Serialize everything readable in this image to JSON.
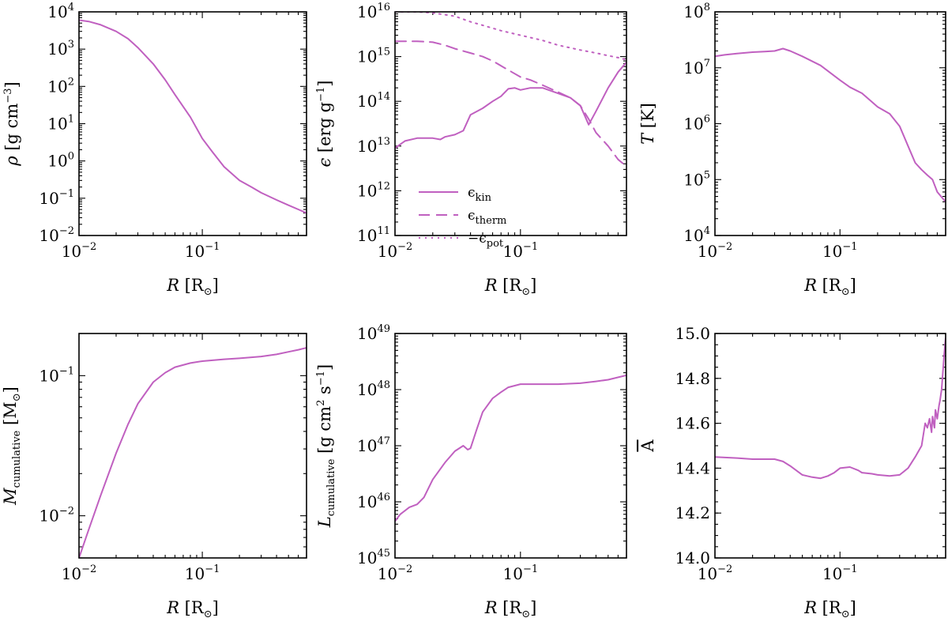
{
  "figure": {
    "line_color": "#c060c0"
  },
  "chart_data": [
    {
      "type": "line",
      "id": "rho",
      "xscale": "log",
      "yscale": "log",
      "xlim": [
        0.01,
        0.7
      ],
      "ylim": [
        0.01,
        10000
      ],
      "xlabel": {
        "main": "R",
        "unit": "[R",
        "unit_sub": "⊙",
        "unit_end": "]"
      },
      "ylabel": {
        "main": "ρ",
        "unit": "[g cm",
        "unit_sup": "−3",
        "unit_end": "]"
      },
      "xticks": [
        {
          "value": 0.01,
          "base": "10",
          "exp": "−2"
        },
        {
          "value": 0.1,
          "base": "10",
          "exp": "−1"
        }
      ],
      "yticks": [
        {
          "value": 0.01,
          "base": "10",
          "exp": "−2"
        },
        {
          "value": 0.1,
          "base": "10",
          "exp": "−1"
        },
        {
          "value": 1,
          "base": "10",
          "exp": "0"
        },
        {
          "value": 10,
          "base": "10",
          "exp": "1"
        },
        {
          "value": 100,
          "base": "10",
          "exp": "2"
        },
        {
          "value": 1000,
          "base": "10",
          "exp": "3"
        },
        {
          "value": 10000,
          "base": "10",
          "exp": "4"
        }
      ],
      "series": [
        {
          "name": "rho",
          "style": "solid",
          "x": [
            0.01,
            0.012,
            0.015,
            0.02,
            0.025,
            0.03,
            0.04,
            0.05,
            0.06,
            0.08,
            0.1,
            0.12,
            0.15,
            0.2,
            0.25,
            0.3,
            0.4,
            0.5,
            0.6,
            0.7
          ],
          "y": [
            6000,
            5500,
            4500,
            3000,
            1900,
            1100,
            400,
            150,
            60,
            15,
            4,
            1.8,
            0.7,
            0.3,
            0.2,
            0.14,
            0.09,
            0.065,
            0.05,
            0.04
          ]
        }
      ]
    },
    {
      "type": "line",
      "id": "epsilon",
      "xscale": "log",
      "yscale": "log",
      "xlim": [
        0.01,
        0.7
      ],
      "ylim": [
        100000000000.0,
        1e+16
      ],
      "xlabel": {
        "main": "R",
        "unit": "[R",
        "unit_sub": "⊙",
        "unit_end": "]"
      },
      "ylabel": {
        "main": "ϵ",
        "unit": "[erg g",
        "unit_sup": "−1",
        "unit_end": "]"
      },
      "xticks": [
        {
          "value": 0.01,
          "base": "10",
          "exp": "−2"
        },
        {
          "value": 0.1,
          "base": "10",
          "exp": "−1"
        }
      ],
      "yticks": [
        {
          "value": 100000000000.0,
          "base": "10",
          "exp": "11"
        },
        {
          "value": 1000000000000.0,
          "base": "10",
          "exp": "12"
        },
        {
          "value": 10000000000000.0,
          "base": "10",
          "exp": "13"
        },
        {
          "value": 100000000000000.0,
          "base": "10",
          "exp": "14"
        },
        {
          "value": 1000000000000000.0,
          "base": "10",
          "exp": "15"
        },
        {
          "value": 1e+16,
          "base": "10",
          "exp": "16"
        }
      ],
      "legend": {
        "position": "lower-left"
      },
      "series": [
        {
          "name": "ϵ",
          "sub": "kin",
          "style": "solid",
          "x": [
            0.01,
            0.012,
            0.015,
            0.02,
            0.023,
            0.025,
            0.03,
            0.035,
            0.04,
            0.05,
            0.06,
            0.07,
            0.08,
            0.09,
            0.1,
            0.12,
            0.15,
            0.2,
            0.25,
            0.3,
            0.35,
            0.4,
            0.5,
            0.6,
            0.7
          ],
          "y": [
            9000000000000.0,
            13000000000000.0,
            15000000000000.0,
            15000000000000.0,
            14000000000000.0,
            16000000000000.0,
            18000000000000.0,
            22000000000000.0,
            50000000000000.0,
            70000000000000.0,
            100000000000000.0,
            130000000000000.0,
            190000000000000.0,
            200000000000000.0,
            180000000000000.0,
            200000000000000.0,
            200000000000000.0,
            150000000000000.0,
            120000000000000.0,
            80000000000000.0,
            30000000000000.0,
            60000000000000.0,
            200000000000000.0,
            450000000000000.0,
            750000000000000.0
          ]
        },
        {
          "name": "ϵ",
          "sub": "therm",
          "style": "dashed",
          "x": [
            0.01,
            0.015,
            0.02,
            0.025,
            0.03,
            0.04,
            0.05,
            0.06,
            0.08,
            0.1,
            0.12,
            0.15,
            0.2,
            0.25,
            0.3,
            0.35,
            0.4,
            0.5,
            0.6,
            0.7
          ],
          "y": [
            2200000000000000.0,
            2200000000000000.0,
            2100000000000000.0,
            1800000000000000.0,
            1500000000000000.0,
            1200000000000000.0,
            1000000000000000.0,
            800000000000000.0,
            500000000000000.0,
            350000000000000.0,
            300000000000000.0,
            230000000000000.0,
            160000000000000.0,
            120000000000000.0,
            80000000000000.0,
            40000000000000.0,
            20000000000000.0,
            10000000000000.0,
            5000000000000.0,
            3500000000000.0
          ]
        },
        {
          "name": "−ϵ",
          "sub": "pot",
          "style": "dotted",
          "x": [
            0.01,
            0.015,
            0.02,
            0.03,
            0.04,
            0.05,
            0.07,
            0.1,
            0.15,
            0.2,
            0.3,
            0.4,
            0.5,
            0.6,
            0.7
          ],
          "y": [
            1e+16,
            1e+16,
            9500000000000000.0,
            8000000000000000.0,
            6000000000000000.0,
            5000000000000000.0,
            3800000000000000.0,
            3000000000000000.0,
            2300000000000000.0,
            1800000000000000.0,
            1400000000000000.0,
            1200000000000000.0,
            1050000000000000.0,
            950000000000000.0,
            850000000000000.0
          ]
        }
      ]
    },
    {
      "type": "line",
      "id": "temperature",
      "xscale": "log",
      "yscale": "log",
      "xlim": [
        0.01,
        0.7
      ],
      "ylim": [
        10000,
        100000000.0
      ],
      "xlabel": {
        "main": "R",
        "unit": "[R",
        "unit_sub": "⊙",
        "unit_end": "]"
      },
      "ylabel": {
        "main": "T",
        "unit": "[K]"
      },
      "xticks": [
        {
          "value": 0.01,
          "base": "10",
          "exp": "−2"
        },
        {
          "value": 0.1,
          "base": "10",
          "exp": "−1"
        }
      ],
      "yticks": [
        {
          "value": 10000,
          "base": "10",
          "exp": "4"
        },
        {
          "value": 100000,
          "base": "10",
          "exp": "5"
        },
        {
          "value": 1000000.0,
          "base": "10",
          "exp": "6"
        },
        {
          "value": 10000000.0,
          "base": "10",
          "exp": "7"
        },
        {
          "value": 100000000.0,
          "base": "10",
          "exp": "8"
        }
      ],
      "series": [
        {
          "name": "T",
          "style": "solid",
          "x": [
            0.01,
            0.012,
            0.015,
            0.02,
            0.025,
            0.03,
            0.035,
            0.04,
            0.05,
            0.07,
            0.1,
            0.12,
            0.15,
            0.2,
            0.25,
            0.3,
            0.35,
            0.4,
            0.45,
            0.5,
            0.55,
            0.6,
            0.7
          ],
          "y": [
            16000000.0,
            17000000.0,
            18000000.0,
            19000000.0,
            19500000.0,
            20000000.0,
            22000000.0,
            20000000.0,
            16000000.0,
            11000000.0,
            6000000.0,
            4500000.0,
            3500000.0,
            2000000.0,
            1500000.0,
            900000.0,
            400000.0,
            200000.0,
            150000.0,
            120000.0,
            100000.0,
            60000.0,
            40000.0
          ]
        }
      ]
    },
    {
      "type": "line",
      "id": "mass",
      "xscale": "log",
      "yscale": "log",
      "xlim": [
        0.01,
        0.7
      ],
      "ylim": [
        0.005,
        0.2
      ],
      "xlabel": {
        "main": "R",
        "unit": "[R",
        "unit_sub": "⊙",
        "unit_end": "]"
      },
      "ylabel": {
        "main": "M",
        "main_sub": "cumulative",
        "unit": "[M",
        "unit_sub": "⊙",
        "unit_end": "]"
      },
      "xticks": [
        {
          "value": 0.01,
          "base": "10",
          "exp": "−2"
        },
        {
          "value": 0.1,
          "base": "10",
          "exp": "−1"
        }
      ],
      "yticks": [
        {
          "value": 0.01,
          "base": "10",
          "exp": "−2"
        },
        {
          "value": 0.1,
          "base": "10",
          "exp": "−1"
        }
      ],
      "series": [
        {
          "name": "M_cumulative",
          "style": "solid",
          "x": [
            0.01,
            0.012,
            0.015,
            0.02,
            0.025,
            0.03,
            0.04,
            0.05,
            0.06,
            0.08,
            0.1,
            0.15,
            0.2,
            0.3,
            0.4,
            0.5,
            0.6,
            0.7
          ],
          "y": [
            0.005,
            0.008,
            0.014,
            0.028,
            0.045,
            0.063,
            0.09,
            0.105,
            0.115,
            0.123,
            0.127,
            0.131,
            0.133,
            0.137,
            0.142,
            0.148,
            0.153,
            0.158
          ]
        }
      ]
    },
    {
      "type": "line",
      "id": "angular_momentum",
      "xscale": "log",
      "yscale": "log",
      "xlim": [
        0.01,
        0.7
      ],
      "ylim": [
        1e+45,
        1e+49
      ],
      "xlabel": {
        "main": "R",
        "unit": "[R",
        "unit_sub": "⊙",
        "unit_end": "]"
      },
      "ylabel": {
        "main": "L",
        "main_sub": "cumulative",
        "unit": "[g cm",
        "unit_sup": "2",
        "unit_mid": " s",
        "unit_sup2": "−1",
        "unit_end": "]"
      },
      "xticks": [
        {
          "value": 0.01,
          "base": "10",
          "exp": "−2"
        },
        {
          "value": 0.1,
          "base": "10",
          "exp": "−1"
        }
      ],
      "yticks": [
        {
          "value": 1e+45,
          "base": "10",
          "exp": "45"
        },
        {
          "value": 1e+46,
          "base": "10",
          "exp": "46"
        },
        {
          "value": 1e+47,
          "base": "10",
          "exp": "47"
        },
        {
          "value": 1e+48,
          "base": "10",
          "exp": "48"
        },
        {
          "value": 1e+49,
          "base": "10",
          "exp": "49"
        }
      ],
      "series": [
        {
          "name": "L_cumulative",
          "style": "solid",
          "x": [
            0.01,
            0.011,
            0.013,
            0.015,
            0.017,
            0.02,
            0.025,
            0.03,
            0.035,
            0.038,
            0.04,
            0.045,
            0.05,
            0.06,
            0.07,
            0.08,
            0.1,
            0.15,
            0.2,
            0.3,
            0.4,
            0.5,
            0.7
          ],
          "y": [
            4.5e+45,
            6e+45,
            8e+45,
            9e+45,
            1.2e+46,
            2.5e+46,
            5e+46,
            8e+46,
            1e+47,
            8.5e+46,
            9e+46,
            2e+47,
            4e+47,
            7e+47,
            9e+47,
            1.1e+48,
            1.25e+48,
            1.25e+48,
            1.25e+48,
            1.3e+48,
            1.4e+48,
            1.5e+48,
            1.8e+48
          ]
        }
      ]
    },
    {
      "type": "line",
      "id": "mean_mass_number",
      "xscale": "log",
      "yscale": "linear",
      "xlim": [
        0.01,
        0.7
      ],
      "ylim": [
        14.0,
        15.0
      ],
      "xlabel": {
        "main": "R",
        "unit": "[R",
        "unit_sub": "⊙",
        "unit_end": "]"
      },
      "ylabel": {
        "main": "A",
        "overline": true
      },
      "xticks": [
        {
          "value": 0.01,
          "base": "10",
          "exp": "−2"
        },
        {
          "value": 0.1,
          "base": "10",
          "exp": "−1"
        }
      ],
      "yticks": [
        {
          "value": 14.0,
          "text": "14.0"
        },
        {
          "value": 14.2,
          "text": "14.2"
        },
        {
          "value": 14.4,
          "text": "14.4"
        },
        {
          "value": 14.6,
          "text": "14.6"
        },
        {
          "value": 14.8,
          "text": "14.8"
        },
        {
          "value": 15.0,
          "text": "15.0"
        }
      ],
      "series": [
        {
          "name": "A_bar",
          "style": "solid",
          "x": [
            0.01,
            0.015,
            0.02,
            0.03,
            0.035,
            0.04,
            0.05,
            0.06,
            0.07,
            0.08,
            0.09,
            0.1,
            0.12,
            0.14,
            0.15,
            0.18,
            0.2,
            0.25,
            0.3,
            0.35,
            0.4,
            0.45,
            0.48,
            0.5,
            0.52,
            0.54,
            0.55,
            0.57,
            0.58,
            0.6,
            0.62,
            0.63,
            0.65,
            0.67,
            0.68,
            0.7
          ],
          "y": [
            14.45,
            14.445,
            14.44,
            14.44,
            14.43,
            14.41,
            14.37,
            14.36,
            14.355,
            14.365,
            14.38,
            14.4,
            14.405,
            14.39,
            14.38,
            14.375,
            14.37,
            14.365,
            14.37,
            14.4,
            14.45,
            14.5,
            14.6,
            14.58,
            14.62,
            14.56,
            14.63,
            14.58,
            14.66,
            14.62,
            14.68,
            14.7,
            14.75,
            14.85,
            14.9,
            14.98
          ]
        }
      ]
    }
  ]
}
